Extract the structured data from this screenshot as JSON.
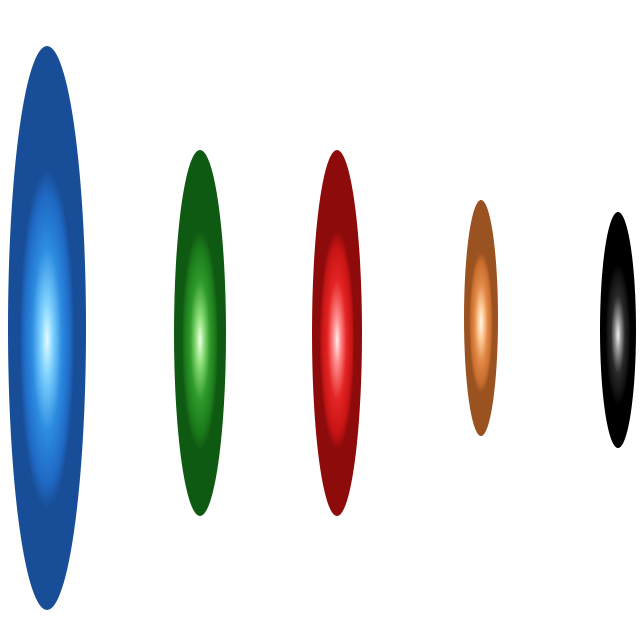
{
  "ellipsoids": [
    {
      "name": "blue-ellipsoid",
      "color": "#1f6fd0"
    },
    {
      "name": "green-ellipsoid",
      "color": "#1f7f1f"
    },
    {
      "name": "red-ellipsoid",
      "color": "#d61919"
    },
    {
      "name": "orange-ellipsoid",
      "color": "#d9783a"
    },
    {
      "name": "black-ellipsoid",
      "color": "#111111"
    }
  ]
}
